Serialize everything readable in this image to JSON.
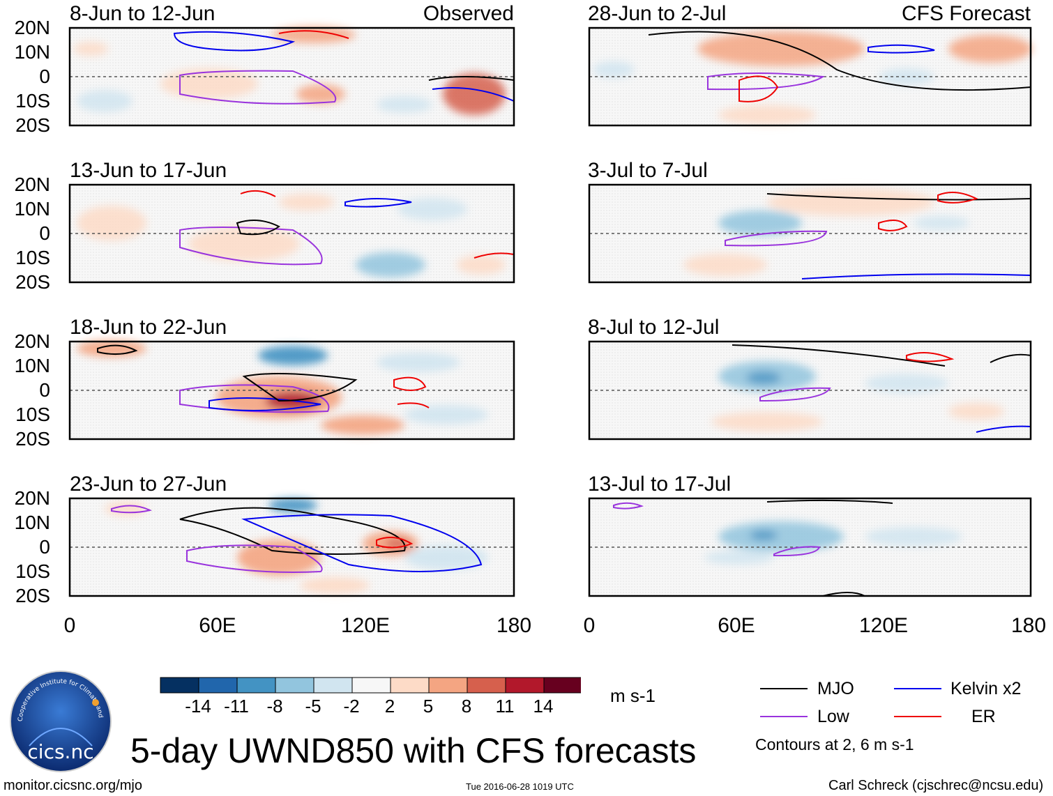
{
  "chart_data": {
    "type": "heatmap",
    "title": "5-day UWND850 with CFS forecasts",
    "units": "m s-1",
    "contour_note": "Contours at 2, 6 m s-1",
    "left_column_label": "Observed",
    "right_column_label": "CFS Forecast",
    "lat_ticks": [
      "20N",
      "10N",
      "0",
      "10S",
      "20S"
    ],
    "lon_ticks": [
      "0",
      "60E",
      "120E",
      "180"
    ],
    "colorbar": {
      "ticks": [
        "-14",
        "-11",
        "-8",
        "-5",
        "-2",
        "2",
        "5",
        "8",
        "11",
        "14"
      ],
      "colors": [
        "#053061",
        "#2166ac",
        "#4393c3",
        "#92c5de",
        "#d1e5f0",
        "#f7f7f7",
        "#fddbc7",
        "#f4a582",
        "#d6604d",
        "#b2182b",
        "#67001f"
      ]
    },
    "panels": [
      {
        "title": "8-Jun to 12-Jun",
        "column": "left"
      },
      {
        "title": "13-Jun to 17-Jun",
        "column": "left"
      },
      {
        "title": "18-Jun to 22-Jun",
        "column": "left"
      },
      {
        "title": "23-Jun to 27-Jun",
        "column": "left"
      },
      {
        "title": "28-Jun to 2-Jul",
        "column": "right"
      },
      {
        "title": "3-Jul to 7-Jul",
        "column": "right"
      },
      {
        "title": "8-Jul to 12-Jul",
        "column": "right"
      },
      {
        "title": "13-Jul to 17-Jul",
        "column": "right"
      }
    ],
    "legend": [
      {
        "label": "MJO",
        "color": "#000000"
      },
      {
        "label": "Kelvin x2",
        "color": "#0000ee"
      },
      {
        "label": "Low",
        "color": "#9933dd"
      },
      {
        "label": "ER",
        "color": "#ee0000"
      }
    ]
  },
  "footer": {
    "left": "monitor.cicsnc.org/mjo",
    "center": "Tue 2016-06-28 1019 UTC",
    "right": "Carl Schreck (cjschrec@ncsu.edu)"
  },
  "logo": {
    "text": "cics.nc",
    "ring_text": "Cooperative Institute for Climate and Satellites"
  }
}
